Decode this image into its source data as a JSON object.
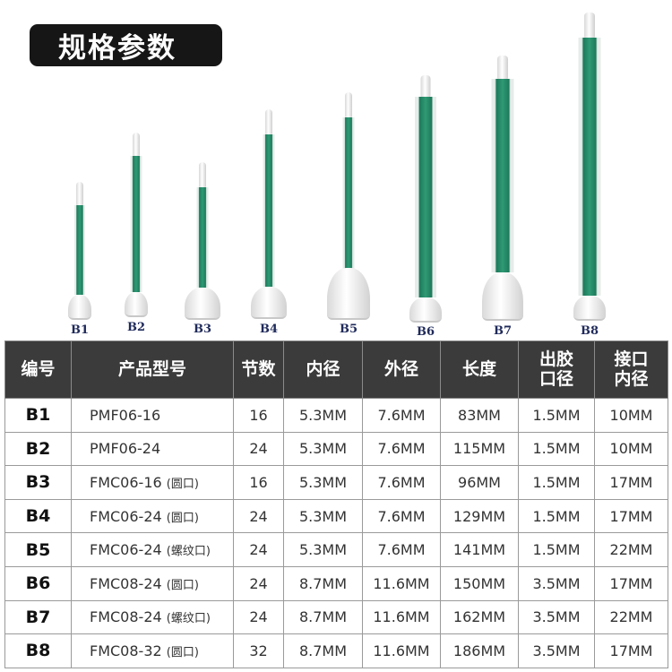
{
  "title": "规格参数",
  "products": [
    {
      "label": "B1"
    },
    {
      "label": "B2"
    },
    {
      "label": "B3"
    },
    {
      "label": "B4"
    },
    {
      "label": "B5"
    },
    {
      "label": "B6"
    },
    {
      "label": "B7"
    },
    {
      "label": "B8"
    }
  ],
  "table": {
    "headers": [
      "编号",
      "产品型号",
      "节数",
      "内径",
      "外径",
      "长度",
      "出胶口径",
      "接口内径"
    ],
    "rows": [
      {
        "code": "B1",
        "model": "PMF06-16",
        "suffix": "",
        "sections": "16",
        "inner": "5.3MM",
        "outer": "7.6MM",
        "length": "83MM",
        "outlet": "1.5MM",
        "port": "10MM"
      },
      {
        "code": "B2",
        "model": "PMF06-24",
        "suffix": "",
        "sections": "24",
        "inner": "5.3MM",
        "outer": "7.6MM",
        "length": "115MM",
        "outlet": "1.5MM",
        "port": "10MM"
      },
      {
        "code": "B3",
        "model": "FMC06-16",
        "suffix": "(圆口)",
        "sections": "16",
        "inner": "5.3MM",
        "outer": "7.6MM",
        "length": "96MM",
        "outlet": "1.5MM",
        "port": "17MM"
      },
      {
        "code": "B4",
        "model": "FMC06-24",
        "suffix": "(圆口)",
        "sections": "24",
        "inner": "5.3MM",
        "outer": "7.6MM",
        "length": "129MM",
        "outlet": "1.5MM",
        "port": "17MM"
      },
      {
        "code": "B5",
        "model": "FMC06-24",
        "suffix": "(螺纹口)",
        "sections": "24",
        "inner": "5.3MM",
        "outer": "7.6MM",
        "length": "141MM",
        "outlet": "1.5MM",
        "port": "22MM"
      },
      {
        "code": "B6",
        "model": "FMC08-24",
        "suffix": "(圆口)",
        "sections": "24",
        "inner": "8.7MM",
        "outer": "11.6MM",
        "length": "150MM",
        "outlet": "3.5MM",
        "port": "17MM"
      },
      {
        "code": "B7",
        "model": "FMC08-24",
        "suffix": "(螺纹口)",
        "sections": "24",
        "inner": "8.7MM",
        "outer": "11.6MM",
        "length": "162MM",
        "outlet": "3.5MM",
        "port": "22MM"
      },
      {
        "code": "B8",
        "model": "FMC08-32",
        "suffix": "(圆口)",
        "sections": "32",
        "inner": "8.7MM",
        "outer": "11.6MM",
        "length": "186MM",
        "outlet": "3.5MM",
        "port": "17MM"
      }
    ]
  },
  "colors": {
    "tube": "#2f9a75",
    "header_bg": "#3b3b3b",
    "title_bg": "#161616"
  }
}
